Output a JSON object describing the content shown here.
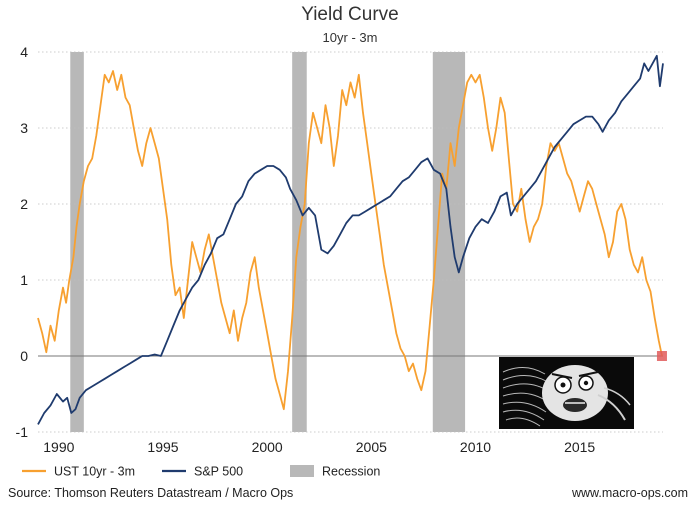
{
  "chart_data": {
    "type": "line",
    "title": "Yield Curve",
    "subtitle": "10yr - 3m",
    "xlim": [
      1989.0,
      2019.0
    ],
    "ylim": [
      -1,
      4
    ],
    "x_ticks": [
      1990,
      1995,
      2000,
      2005,
      2010,
      2015
    ],
    "y_ticks": [
      -1,
      0,
      1,
      2,
      3,
      4
    ],
    "grid": "horizontal dotted",
    "legend_placement": "bottom",
    "recessions": [
      [
        1990.55,
        1991.2
      ],
      [
        2001.2,
        2001.9
      ],
      [
        2007.95,
        2009.5
      ]
    ],
    "recession_name": "Recession",
    "recession_color": "#b8b8b8",
    "series": [
      {
        "name": "UST 10yr - 3m",
        "color": "#f7a030",
        "points": [
          [
            1989.0,
            0.5
          ],
          [
            1989.2,
            0.3
          ],
          [
            1989.4,
            0.05
          ],
          [
            1989.6,
            0.4
          ],
          [
            1989.8,
            0.2
          ],
          [
            1990.0,
            0.6
          ],
          [
            1990.2,
            0.9
          ],
          [
            1990.35,
            0.7
          ],
          [
            1990.5,
            1.0
          ],
          [
            1990.7,
            1.3
          ],
          [
            1990.85,
            1.7
          ],
          [
            1991.0,
            2.0
          ],
          [
            1991.2,
            2.3
          ],
          [
            1991.4,
            2.5
          ],
          [
            1991.6,
            2.6
          ],
          [
            1991.8,
            2.9
          ],
          [
            1992.0,
            3.3
          ],
          [
            1992.2,
            3.7
          ],
          [
            1992.4,
            3.6
          ],
          [
            1992.6,
            3.75
          ],
          [
            1992.8,
            3.5
          ],
          [
            1993.0,
            3.7
          ],
          [
            1993.2,
            3.4
          ],
          [
            1993.4,
            3.3
          ],
          [
            1993.6,
            3.0
          ],
          [
            1993.8,
            2.7
          ],
          [
            1994.0,
            2.5
          ],
          [
            1994.2,
            2.8
          ],
          [
            1994.4,
            3.0
          ],
          [
            1994.6,
            2.8
          ],
          [
            1994.8,
            2.6
          ],
          [
            1995.0,
            2.2
          ],
          [
            1995.2,
            1.8
          ],
          [
            1995.4,
            1.2
          ],
          [
            1995.6,
            0.8
          ],
          [
            1995.8,
            0.9
          ],
          [
            1996.0,
            0.5
          ],
          [
            1996.2,
            1.0
          ],
          [
            1996.4,
            1.5
          ],
          [
            1996.6,
            1.3
          ],
          [
            1996.8,
            1.1
          ],
          [
            1997.0,
            1.4
          ],
          [
            1997.2,
            1.6
          ],
          [
            1997.4,
            1.3
          ],
          [
            1997.6,
            1.0
          ],
          [
            1997.8,
            0.7
          ],
          [
            1998.0,
            0.5
          ],
          [
            1998.2,
            0.3
          ],
          [
            1998.4,
            0.6
          ],
          [
            1998.6,
            0.2
          ],
          [
            1998.8,
            0.5
          ],
          [
            1999.0,
            0.7
          ],
          [
            1999.2,
            1.1
          ],
          [
            1999.4,
            1.3
          ],
          [
            1999.6,
            0.9
          ],
          [
            1999.8,
            0.6
          ],
          [
            2000.0,
            0.3
          ],
          [
            2000.2,
            0.0
          ],
          [
            2000.4,
            -0.3
          ],
          [
            2000.6,
            -0.5
          ],
          [
            2000.8,
            -0.7
          ],
          [
            2001.0,
            -0.2
          ],
          [
            2001.2,
            0.5
          ],
          [
            2001.4,
            1.3
          ],
          [
            2001.6,
            1.7
          ],
          [
            2001.8,
            2.0
          ],
          [
            2002.0,
            2.8
          ],
          [
            2002.2,
            3.2
          ],
          [
            2002.4,
            3.0
          ],
          [
            2002.6,
            2.8
          ],
          [
            2002.8,
            3.3
          ],
          [
            2003.0,
            3.0
          ],
          [
            2003.2,
            2.5
          ],
          [
            2003.4,
            2.9
          ],
          [
            2003.6,
            3.5
          ],
          [
            2003.8,
            3.3
          ],
          [
            2004.0,
            3.6
          ],
          [
            2004.2,
            3.4
          ],
          [
            2004.4,
            3.7
          ],
          [
            2004.6,
            3.2
          ],
          [
            2004.8,
            2.8
          ],
          [
            2005.0,
            2.4
          ],
          [
            2005.2,
            2.0
          ],
          [
            2005.4,
            1.6
          ],
          [
            2005.6,
            1.2
          ],
          [
            2005.8,
            0.9
          ],
          [
            2006.0,
            0.6
          ],
          [
            2006.2,
            0.3
          ],
          [
            2006.4,
            0.1
          ],
          [
            2006.6,
            0.0
          ],
          [
            2006.8,
            -0.2
          ],
          [
            2007.0,
            -0.1
          ],
          [
            2007.2,
            -0.3
          ],
          [
            2007.4,
            -0.45
          ],
          [
            2007.6,
            -0.2
          ],
          [
            2007.8,
            0.4
          ],
          [
            2008.0,
            1.0
          ],
          [
            2008.2,
            1.7
          ],
          [
            2008.4,
            2.4
          ],
          [
            2008.6,
            2.2
          ],
          [
            2008.8,
            2.8
          ],
          [
            2009.0,
            2.5
          ],
          [
            2009.2,
            3.0
          ],
          [
            2009.4,
            3.3
          ],
          [
            2009.6,
            3.6
          ],
          [
            2009.8,
            3.7
          ],
          [
            2010.0,
            3.6
          ],
          [
            2010.2,
            3.7
          ],
          [
            2010.4,
            3.4
          ],
          [
            2010.6,
            3.0
          ],
          [
            2010.8,
            2.7
          ],
          [
            2011.0,
            3.0
          ],
          [
            2011.2,
            3.4
          ],
          [
            2011.4,
            3.2
          ],
          [
            2011.6,
            2.6
          ],
          [
            2011.8,
            2.0
          ],
          [
            2012.0,
            1.9
          ],
          [
            2012.2,
            2.2
          ],
          [
            2012.4,
            1.8
          ],
          [
            2012.6,
            1.5
          ],
          [
            2012.8,
            1.7
          ],
          [
            2013.0,
            1.8
          ],
          [
            2013.2,
            2.0
          ],
          [
            2013.4,
            2.5
          ],
          [
            2013.6,
            2.8
          ],
          [
            2013.8,
            2.7
          ],
          [
            2014.0,
            2.8
          ],
          [
            2014.2,
            2.6
          ],
          [
            2014.4,
            2.4
          ],
          [
            2014.6,
            2.3
          ],
          [
            2014.8,
            2.1
          ],
          [
            2015.0,
            1.9
          ],
          [
            2015.2,
            2.1
          ],
          [
            2015.4,
            2.3
          ],
          [
            2015.6,
            2.2
          ],
          [
            2015.8,
            2.0
          ],
          [
            2016.0,
            1.8
          ],
          [
            2016.2,
            1.6
          ],
          [
            2016.4,
            1.3
          ],
          [
            2016.6,
            1.5
          ],
          [
            2016.8,
            1.9
          ],
          [
            2017.0,
            2.0
          ],
          [
            2017.2,
            1.8
          ],
          [
            2017.4,
            1.4
          ],
          [
            2017.6,
            1.2
          ],
          [
            2017.8,
            1.1
          ],
          [
            2018.0,
            1.3
          ],
          [
            2018.2,
            1.0
          ],
          [
            2018.4,
            0.85
          ],
          [
            2018.6,
            0.5
          ],
          [
            2018.8,
            0.2
          ],
          [
            2018.95,
            0.0
          ]
        ]
      },
      {
        "name": "S&P 500",
        "color": "#1f3b6e",
        "points": [
          [
            1989.0,
            -0.9
          ],
          [
            1989.3,
            -0.75
          ],
          [
            1989.6,
            -0.65
          ],
          [
            1989.9,
            -0.5
          ],
          [
            1990.2,
            -0.6
          ],
          [
            1990.4,
            -0.55
          ],
          [
            1990.6,
            -0.75
          ],
          [
            1990.8,
            -0.7
          ],
          [
            1991.0,
            -0.55
          ],
          [
            1991.3,
            -0.45
          ],
          [
            1991.6,
            -0.4
          ],
          [
            1991.9,
            -0.35
          ],
          [
            1992.2,
            -0.3
          ],
          [
            1992.5,
            -0.25
          ],
          [
            1992.8,
            -0.2
          ],
          [
            1993.1,
            -0.15
          ],
          [
            1993.4,
            -0.1
          ],
          [
            1993.7,
            -0.05
          ],
          [
            1994.0,
            0.0
          ],
          [
            1994.3,
            0.0
          ],
          [
            1994.6,
            0.02
          ],
          [
            1994.9,
            0.0
          ],
          [
            1995.2,
            0.2
          ],
          [
            1995.5,
            0.4
          ],
          [
            1995.8,
            0.6
          ],
          [
            1996.1,
            0.75
          ],
          [
            1996.4,
            0.9
          ],
          [
            1996.7,
            1.0
          ],
          [
            1997.0,
            1.2
          ],
          [
            1997.3,
            1.35
          ],
          [
            1997.6,
            1.55
          ],
          [
            1997.9,
            1.6
          ],
          [
            1998.2,
            1.8
          ],
          [
            1998.5,
            2.0
          ],
          [
            1998.8,
            2.1
          ],
          [
            1999.1,
            2.3
          ],
          [
            1999.4,
            2.4
          ],
          [
            1999.7,
            2.45
          ],
          [
            2000.0,
            2.5
          ],
          [
            2000.3,
            2.5
          ],
          [
            2000.6,
            2.45
          ],
          [
            2000.9,
            2.35
          ],
          [
            2001.1,
            2.2
          ],
          [
            2001.4,
            2.05
          ],
          [
            2001.7,
            1.85
          ],
          [
            2002.0,
            1.95
          ],
          [
            2002.3,
            1.85
          ],
          [
            2002.6,
            1.4
          ],
          [
            2002.9,
            1.35
          ],
          [
            2003.2,
            1.45
          ],
          [
            2003.5,
            1.6
          ],
          [
            2003.8,
            1.75
          ],
          [
            2004.1,
            1.85
          ],
          [
            2004.4,
            1.85
          ],
          [
            2004.7,
            1.9
          ],
          [
            2005.0,
            1.95
          ],
          [
            2005.3,
            2.0
          ],
          [
            2005.6,
            2.05
          ],
          [
            2005.9,
            2.1
          ],
          [
            2006.2,
            2.2
          ],
          [
            2006.5,
            2.3
          ],
          [
            2006.8,
            2.35
          ],
          [
            2007.1,
            2.45
          ],
          [
            2007.4,
            2.55
          ],
          [
            2007.7,
            2.6
          ],
          [
            2008.0,
            2.45
          ],
          [
            2008.3,
            2.4
          ],
          [
            2008.6,
            2.2
          ],
          [
            2008.8,
            1.7
          ],
          [
            2009.0,
            1.3
          ],
          [
            2009.2,
            1.1
          ],
          [
            2009.4,
            1.3
          ],
          [
            2009.7,
            1.55
          ],
          [
            2010.0,
            1.7
          ],
          [
            2010.3,
            1.8
          ],
          [
            2010.6,
            1.75
          ],
          [
            2010.9,
            1.9
          ],
          [
            2011.2,
            2.1
          ],
          [
            2011.5,
            2.15
          ],
          [
            2011.7,
            1.85
          ],
          [
            2012.0,
            2.0
          ],
          [
            2012.3,
            2.1
          ],
          [
            2012.6,
            2.2
          ],
          [
            2012.9,
            2.3
          ],
          [
            2013.2,
            2.45
          ],
          [
            2013.5,
            2.6
          ],
          [
            2013.8,
            2.75
          ],
          [
            2014.1,
            2.85
          ],
          [
            2014.4,
            2.95
          ],
          [
            2014.7,
            3.05
          ],
          [
            2015.0,
            3.1
          ],
          [
            2015.3,
            3.15
          ],
          [
            2015.6,
            3.15
          ],
          [
            2015.9,
            3.05
          ],
          [
            2016.1,
            2.95
          ],
          [
            2016.4,
            3.1
          ],
          [
            2016.7,
            3.2
          ],
          [
            2017.0,
            3.35
          ],
          [
            2017.3,
            3.45
          ],
          [
            2017.6,
            3.55
          ],
          [
            2017.9,
            3.65
          ],
          [
            2018.1,
            3.85
          ],
          [
            2018.3,
            3.75
          ],
          [
            2018.5,
            3.85
          ],
          [
            2018.7,
            3.95
          ],
          [
            2018.85,
            3.55
          ],
          [
            2019.0,
            3.85
          ]
        ]
      }
    ],
    "end_marker": {
      "x": 2018.95,
      "y": 0.0,
      "color": "#e05a5a"
    }
  },
  "footer": {
    "source": "Source: Thomson Reuters Datastream / Macro Ops",
    "website": "www.macro-ops.com"
  }
}
